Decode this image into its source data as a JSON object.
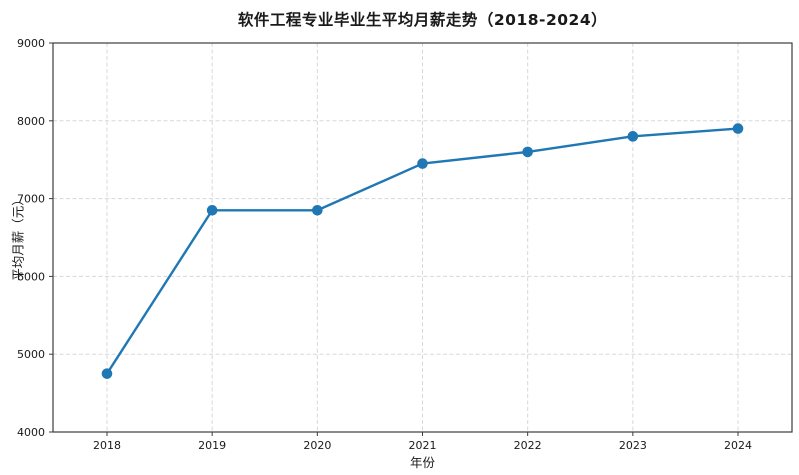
{
  "figure": {
    "title": "软件工程专业毕业生平均月薪走势（2018-2024）"
  },
  "chart_data": {
    "type": "line",
    "title": "软件工程专业毕业生平均月薪走势（2018-2024）",
    "xlabel": "年份",
    "ylabel": "平均月薪（元）",
    "x": [
      2018,
      2019,
      2020,
      2021,
      2022,
      2023,
      2024
    ],
    "series": [
      {
        "name": "平均月薪",
        "values": [
          4750,
          6850,
          6850,
          7450,
          7600,
          7800,
          7900
        ]
      }
    ],
    "xticks": [
      2018,
      2019,
      2020,
      2021,
      2022,
      2023,
      2024
    ],
    "yticks": [
      4000,
      5000,
      6000,
      7000,
      8000,
      9000
    ],
    "ylim": [
      4000,
      9000
    ],
    "grid": true,
    "grid_style": "dashed",
    "legend": "none",
    "line_color": "#1f77b4",
    "marker": "circle",
    "background_color": "#ffffff"
  }
}
